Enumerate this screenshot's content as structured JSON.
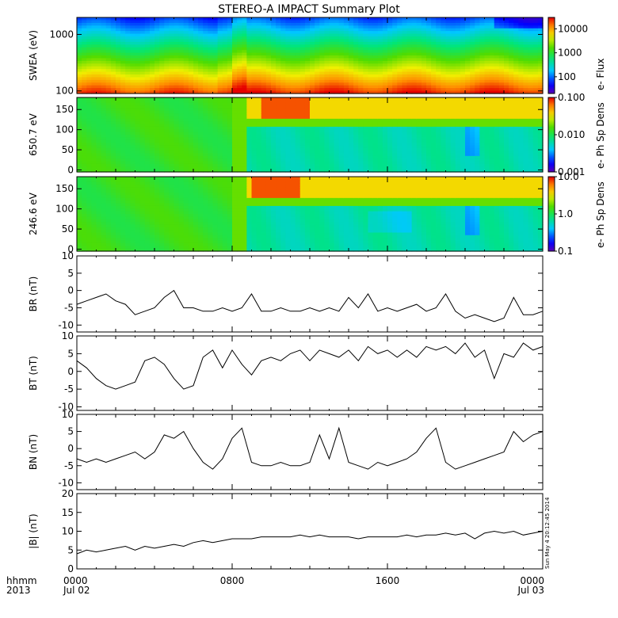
{
  "title": "STEREO-A IMPACT Summary Plot",
  "timestamp": "Sun May  4 20:12:45 2014",
  "time_axis": {
    "label_lines": [
      "hhmm",
      "2013"
    ],
    "ticks": [
      {
        "hour": 0,
        "lines": [
          "0000",
          "Jul 02"
        ]
      },
      {
        "hour": 8,
        "lines": [
          "0800",
          ""
        ]
      },
      {
        "hour": 16,
        "lines": [
          "1600",
          ""
        ]
      },
      {
        "hour": 24,
        "lines": [
          "0000",
          "Jul 03"
        ]
      }
    ],
    "range_hours": [
      0,
      24
    ]
  },
  "chart_data": [
    {
      "type": "heatmap",
      "id": "swea",
      "ylabel": "SWEA (eV)",
      "y_scale": "log",
      "ylim": [
        90,
        2000
      ],
      "yticks": [
        100,
        1000
      ],
      "ytick_labels": [
        "100",
        "1000"
      ],
      "colorbar": {
        "label": "e- Flux",
        "scale": "log",
        "range": [
          20,
          30000
        ],
        "ticks": [
          100,
          1000,
          10000
        ],
        "tick_labels": [
          "100",
          "1000",
          "10000"
        ]
      }
    },
    {
      "type": "heatmap",
      "id": "pad650",
      "ylabel": "650.7 eV",
      "ylim": [
        -5,
        180
      ],
      "yticks": [
        0,
        50,
        100,
        150
      ],
      "ytick_labels": [
        "0",
        "50",
        "100",
        "150"
      ],
      "colorbar": {
        "label": "e- Ph Sp Dens",
        "scale": "log",
        "range": [
          0.001,
          0.1
        ],
        "ticks": [
          0.001,
          0.01,
          0.1
        ],
        "tick_labels": [
          "0.001",
          "0.010",
          "0.100"
        ]
      }
    },
    {
      "type": "heatmap",
      "id": "pad246",
      "ylabel": "246.6 eV",
      "ylim": [
        -5,
        180
      ],
      "yticks": [
        0,
        50,
        100,
        150
      ],
      "ytick_labels": [
        "0",
        "50",
        "100",
        "150"
      ],
      "colorbar": {
        "label": "e- Ph Sp Dens",
        "scale": "log",
        "range": [
          0.1,
          10
        ],
        "ticks": [
          0.1,
          1,
          10
        ],
        "tick_labels": [
          "0.1",
          "1.0",
          "10.0"
        ]
      }
    },
    {
      "type": "line",
      "id": "br",
      "ylabel": "BR (nT)",
      "ylim": [
        -12,
        10
      ],
      "yticks": [
        -10,
        -5,
        0,
        5,
        10
      ],
      "ytick_labels": [
        "-10",
        "-5",
        "0",
        "5",
        "10"
      ],
      "x": [
        0,
        0.5,
        1,
        1.5,
        2,
        2.5,
        3,
        3.5,
        4,
        4.5,
        5,
        5.5,
        6,
        6.5,
        7,
        7.5,
        8,
        8.5,
        9,
        9.5,
        10,
        10.5,
        11,
        11.5,
        12,
        12.5,
        13,
        13.5,
        14,
        14.5,
        15,
        15.5,
        16,
        16.5,
        17,
        17.5,
        18,
        18.5,
        19,
        19.5,
        20,
        20.5,
        21,
        21.5,
        22,
        22.5,
        23,
        23.5,
        24
      ],
      "y": [
        -4,
        -3,
        -2,
        -1,
        -3,
        -4,
        -7,
        -6,
        -5,
        -2,
        0,
        -5,
        -5,
        -6,
        -6,
        -5,
        -6,
        -5,
        -1,
        -6,
        -6,
        -5,
        -6,
        -6,
        -5,
        -6,
        -5,
        -6,
        -2,
        -5,
        -1,
        -6,
        -5,
        -6,
        -5,
        -4,
        -6,
        -5,
        -1,
        -6,
        -8,
        -7,
        -8,
        -9,
        -8,
        -2,
        -7,
        -7,
        -6
      ]
    },
    {
      "type": "line",
      "id": "bt",
      "ylabel": "BT (nT)",
      "ylim": [
        -11,
        10
      ],
      "yticks": [
        -10,
        -5,
        0,
        5,
        10
      ],
      "ytick_labels": [
        "-10",
        "-5",
        "0",
        "5",
        "10"
      ],
      "x": [
        0,
        0.5,
        1,
        1.5,
        2,
        2.5,
        3,
        3.5,
        4,
        4.5,
        5,
        5.5,
        6,
        6.5,
        7,
        7.5,
        8,
        8.5,
        9,
        9.5,
        10,
        10.5,
        11,
        11.5,
        12,
        12.5,
        13,
        13.5,
        14,
        14.5,
        15,
        15.5,
        16,
        16.5,
        17,
        17.5,
        18,
        18.5,
        19,
        19.5,
        20,
        20.5,
        21,
        21.5,
        22,
        22.5,
        23,
        23.5,
        24
      ],
      "y": [
        3,
        1,
        -2,
        -4,
        -5,
        -4,
        -3,
        3,
        4,
        2,
        -2,
        -5,
        -4,
        4,
        6,
        1,
        6,
        2,
        -1,
        3,
        4,
        3,
        5,
        6,
        3,
        6,
        5,
        4,
        6,
        3,
        7,
        5,
        6,
        4,
        6,
        4,
        7,
        6,
        7,
        5,
        8,
        4,
        6,
        -2,
        5,
        4,
        8,
        6,
        7
      ]
    },
    {
      "type": "line",
      "id": "bn",
      "ylabel": "BN (nT)",
      "ylim": [
        -12,
        10
      ],
      "yticks": [
        -10,
        -5,
        0,
        5,
        10
      ],
      "ytick_labels": [
        "-10",
        "-5",
        "0",
        "5",
        "10"
      ],
      "x": [
        0,
        0.5,
        1,
        1.5,
        2,
        2.5,
        3,
        3.5,
        4,
        4.5,
        5,
        5.5,
        6,
        6.5,
        7,
        7.5,
        8,
        8.5,
        9,
        9.5,
        10,
        10.5,
        11,
        11.5,
        12,
        12.5,
        13,
        13.5,
        14,
        14.5,
        15,
        15.5,
        16,
        16.5,
        17,
        17.5,
        18,
        18.5,
        19,
        19.5,
        20,
        20.5,
        21,
        21.5,
        22,
        22.5,
        23,
        23.5,
        24
      ],
      "y": [
        -3,
        -4,
        -3,
        -4,
        -3,
        -2,
        -1,
        -3,
        -1,
        4,
        3,
        5,
        0,
        -4,
        -6,
        -3,
        3,
        6,
        -4,
        -5,
        -5,
        -4,
        -5,
        -5,
        -4,
        4,
        -3,
        6,
        -4,
        -5,
        -6,
        -4,
        -5,
        -4,
        -3,
        -1,
        3,
        6,
        -4,
        -6,
        -5,
        -4,
        -3,
        -2,
        -1,
        5,
        2,
        4,
        5
      ]
    },
    {
      "type": "line",
      "id": "bmag",
      "ylabel": "|B| (nT)",
      "ylim": [
        0,
        20
      ],
      "yticks": [
        0,
        5,
        10,
        15,
        20
      ],
      "ytick_labels": [
        "0",
        "5",
        "10",
        "15",
        "20"
      ],
      "x": [
        0,
        0.5,
        1,
        1.5,
        2,
        2.5,
        3,
        3.5,
        4,
        4.5,
        5,
        5.5,
        6,
        6.5,
        7,
        7.5,
        8,
        8.5,
        9,
        9.5,
        10,
        10.5,
        11,
        11.5,
        12,
        12.5,
        13,
        13.5,
        14,
        14.5,
        15,
        15.5,
        16,
        16.5,
        17,
        17.5,
        18,
        18.5,
        19,
        19.5,
        20,
        20.5,
        21,
        21.5,
        22,
        22.5,
        23,
        23.5,
        24
      ],
      "y": [
        4,
        5,
        4.5,
        5,
        5.5,
        6,
        5,
        6,
        5.5,
        6,
        6.5,
        6,
        7,
        7.5,
        7,
        7.5,
        8,
        8,
        8,
        8.5,
        8.5,
        8.5,
        8.5,
        9,
        8.5,
        9,
        8.5,
        8.5,
        8.5,
        8,
        8.5,
        8.5,
        8.5,
        8.5,
        9,
        8.5,
        9,
        9,
        9.5,
        9,
        9.5,
        8,
        9.5,
        10,
        9.5,
        10,
        9,
        9.5,
        10
      ]
    }
  ]
}
